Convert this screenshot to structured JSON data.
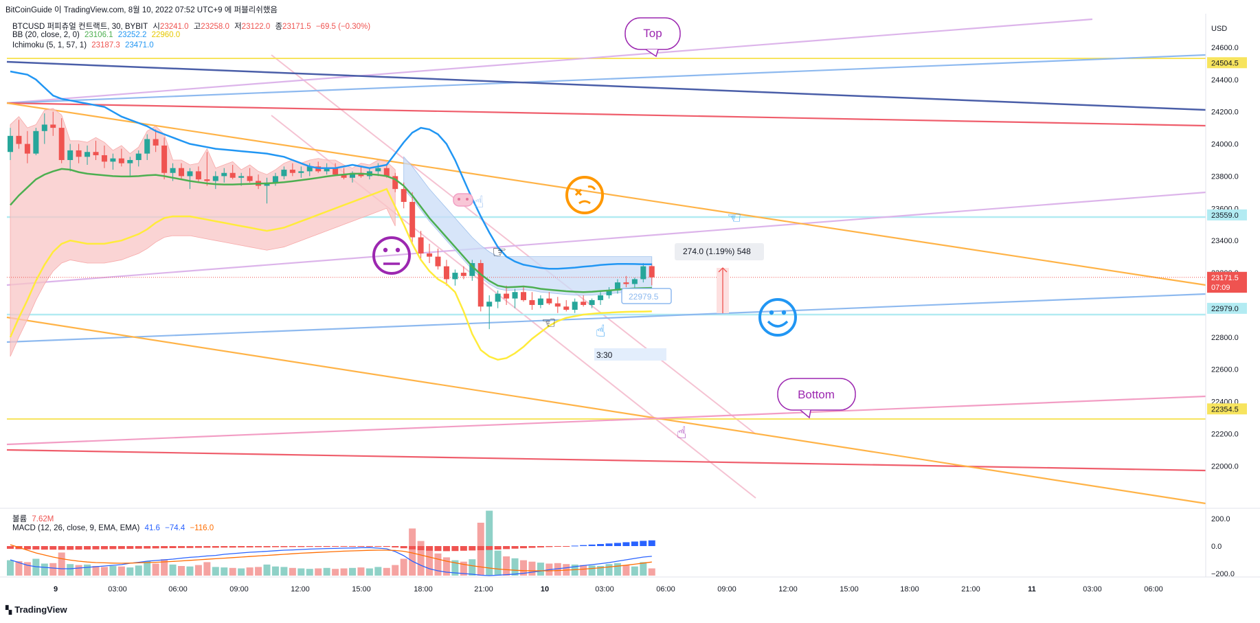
{
  "header": {
    "caption": "BitCoinGuide 이 TradingView.com, 8월 10, 2022 07:52 UTC+9 에 퍼블리쉬했음",
    "symbol_line": {
      "name": "BTCUSD 퍼피츄얼 컨트랙트, 30, BYBIT",
      "open_label": "시",
      "open": "23241.0",
      "high_label": "고",
      "high": "23258.0",
      "low_label": "저",
      "low": "23122.0",
      "close_label": "종",
      "close": "23171.5",
      "change": "−69.5 (−0.30%)"
    },
    "bb_line": {
      "name": "BB (20, close, 2, 0)",
      "basis": "23106.1",
      "upper": "23252.2",
      "lower": "22960.0"
    },
    "ichimoku_line": {
      "name": "Ichimoku (5, 1, 57, 1)",
      "a": "23187.3",
      "b": "23471.0"
    },
    "volume_line": {
      "name": "볼륨",
      "value": "7.62M"
    },
    "macd_line": {
      "name": "MACD (12, 26, close, 9, EMA, EMA)",
      "hist": "41.6",
      "macd": "−74.4",
      "signal": "−116.0"
    }
  },
  "colors": {
    "up": "#26a69a",
    "down": "#ef5350",
    "bb_basis": "#4caf50",
    "bb_upper": "#2196f3",
    "bb_lower": "#ffeb3b",
    "cloud_red": "#f8c6c6",
    "cloud_blue": "#c9dcf7",
    "yellow": "#f7e45e",
    "purple": "#d6a9e6",
    "lightblue": "#8db9ef",
    "navy": "#4a5ea8",
    "red": "#ef5d6b",
    "orange": "#ffb347",
    "pink": "#f29dc4",
    "cyan": "#b2ebf2"
  },
  "chart_data": {
    "type": "candlestick",
    "title": "BTCUSD 퍼피츄얼 컨트랙트, 30, BYBIT",
    "currency_label": "USD",
    "ylim": [
      21750,
      24800
    ],
    "y_ticks": [
      "24600.0",
      "24400.0",
      "24200.0",
      "24000.0",
      "23800.0",
      "23600.0",
      "23400.0",
      "23200.0",
      "22800.0",
      "22600.0",
      "22400.0",
      "22200.0",
      "22000.0"
    ],
    "x_ticks": [
      "9",
      "03:00",
      "06:00",
      "09:00",
      "12:00",
      "15:00",
      "18:00",
      "21:00",
      "10",
      "03:00",
      "06:00",
      "09:00",
      "12:00",
      "15:00",
      "18:00",
      "21:00",
      "11",
      "03:00",
      "06:00"
    ],
    "candles": [
      [
        23950,
        24100,
        23900,
        24050
      ],
      [
        24050,
        24150,
        23970,
        24000
      ],
      [
        24000,
        24080,
        23880,
        23940
      ],
      [
        23940,
        24100,
        23930,
        24080
      ],
      [
        24080,
        24190,
        24000,
        24120
      ],
      [
        24120,
        24200,
        24050,
        24100
      ],
      [
        24100,
        24160,
        23880,
        23900
      ],
      [
        23900,
        24000,
        23830,
        23960
      ],
      [
        23960,
        24000,
        23880,
        23920
      ],
      [
        23920,
        23990,
        23870,
        23950
      ],
      [
        23950,
        24020,
        23900,
        23930
      ],
      [
        23930,
        23990,
        23850,
        23890
      ],
      [
        23890,
        23940,
        23840,
        23910
      ],
      [
        23910,
        23970,
        23860,
        23880
      ],
      [
        23880,
        23920,
        23800,
        23900
      ],
      [
        23900,
        23960,
        23860,
        23940
      ],
      [
        23940,
        24060,
        23900,
        24030
      ],
      [
        24030,
        24090,
        23950,
        23990
      ],
      [
        23990,
        24040,
        23780,
        23820
      ],
      [
        23820,
        23880,
        23770,
        23850
      ],
      [
        23850,
        23880,
        23780,
        23800
      ],
      [
        23800,
        23850,
        23720,
        23830
      ],
      [
        23830,
        23860,
        23760,
        23780
      ],
      [
        23780,
        23950,
        23740,
        23770
      ],
      [
        23770,
        23830,
        23720,
        23800
      ],
      [
        23800,
        23850,
        23760,
        23820
      ],
      [
        23820,
        23870,
        23780,
        23790
      ],
      [
        23790,
        23820,
        23740,
        23800
      ],
      [
        23800,
        23850,
        23760,
        23770
      ],
      [
        23770,
        23810,
        23720,
        23740
      ],
      [
        23740,
        23790,
        23630,
        23760
      ],
      [
        23760,
        23820,
        23740,
        23800
      ],
      [
        23800,
        23860,
        23780,
        23840
      ],
      [
        23840,
        23880,
        23800,
        23820
      ],
      [
        23820,
        23860,
        23790,
        23830
      ],
      [
        23830,
        23880,
        23800,
        23860
      ],
      [
        23860,
        23890,
        23820,
        23830
      ],
      [
        23830,
        23880,
        23810,
        23850
      ],
      [
        23850,
        23880,
        23800,
        23810
      ],
      [
        23810,
        23850,
        23780,
        23790
      ],
      [
        23790,
        23830,
        23760,
        23820
      ],
      [
        23820,
        23860,
        23790,
        23800
      ],
      [
        23800,
        23850,
        23780,
        23830
      ],
      [
        23830,
        23880,
        23800,
        23850
      ],
      [
        23850,
        23870,
        23790,
        23800
      ],
      [
        23800,
        23820,
        23700,
        23720
      ],
      [
        23720,
        23760,
        23600,
        23640
      ],
      [
        23640,
        23700,
        23380,
        23420
      ],
      [
        23420,
        23460,
        23280,
        23320
      ],
      [
        23320,
        23380,
        23260,
        23300
      ],
      [
        23300,
        23350,
        23220,
        23240
      ],
      [
        23240,
        23280,
        23120,
        23160
      ],
      [
        23160,
        23220,
        23120,
        23200
      ],
      [
        23200,
        23240,
        23160,
        23180
      ],
      [
        23180,
        23280,
        23150,
        23260
      ],
      [
        23260,
        23280,
        22960,
        22990
      ],
      [
        22990,
        23060,
        22850,
        23020
      ],
      [
        23020,
        23090,
        22980,
        23070
      ],
      [
        23070,
        23120,
        23000,
        23040
      ],
      [
        23040,
        23100,
        22980,
        23080
      ],
      [
        23080,
        23120,
        23020,
        23030
      ],
      [
        23030,
        23080,
        22970,
        23000
      ],
      [
        23000,
        23060,
        22980,
        23040
      ],
      [
        23040,
        23080,
        23000,
        23010
      ],
      [
        23010,
        23050,
        22950,
        22990
      ],
      [
        22990,
        23030,
        22960,
        22970
      ],
      [
        22970,
        23040,
        22950,
        23020
      ],
      [
        23020,
        23060,
        22990,
        23000
      ],
      [
        23000,
        23040,
        22980,
        23030
      ],
      [
        23030,
        23080,
        23000,
        23060
      ],
      [
        23060,
        23110,
        23040,
        23090
      ],
      [
        23090,
        23160,
        23070,
        23140
      ],
      [
        23140,
        23180,
        23110,
        23130
      ],
      [
        23130,
        23170,
        23100,
        23160
      ],
      [
        23160,
        23260,
        23140,
        23240
      ],
      [
        23241,
        23258,
        23122,
        23171.5
      ]
    ],
    "bb_basis": [
      23620,
      23680,
      23730,
      23780,
      23810,
      23830,
      23845,
      23840,
      23825,
      23815,
      23810,
      23805,
      23800,
      23798,
      23798,
      23800,
      23805,
      23808,
      23800,
      23790,
      23780,
      23770,
      23762,
      23755,
      23750,
      23748,
      23748,
      23750,
      23752,
      23754,
      23755,
      23758,
      23762,
      23768,
      23775,
      23782,
      23790,
      23798,
      23805,
      23810,
      23815,
      23815,
      23812,
      23808,
      23800,
      23780,
      23740,
      23680,
      23610,
      23540,
      23480,
      23420,
      23360,
      23300,
      23240,
      23190,
      23150,
      23120,
      23110,
      23112,
      23115,
      23110,
      23100,
      23095,
      23090,
      23085,
      23082,
      23080,
      23082,
      23086,
      23090,
      23095,
      23100,
      23103,
      23105,
      23106.1
    ],
    "bb_upper": [
      24450,
      24440,
      24430,
      24400,
      24350,
      24300,
      24280,
      24270,
      24260,
      24250,
      24240,
      24230,
      24200,
      24170,
      24150,
      24130,
      24110,
      24080,
      24060,
      24040,
      24020,
      24000,
      23990,
      23980,
      23970,
      23965,
      23960,
      23955,
      23950,
      23945,
      23940,
      23930,
      23920,
      23900,
      23880,
      23860,
      23850,
      23850,
      23850,
      23860,
      23870,
      23860,
      23850,
      23860,
      23870,
      23940,
      24010,
      24070,
      24100,
      24090,
      24060,
      24000,
      23900,
      23780,
      23660,
      23550,
      23450,
      23360,
      23300,
      23270,
      23250,
      23240,
      23230,
      23225,
      23225,
      23228,
      23232,
      23238,
      23242,
      23248,
      23252,
      23255,
      23255,
      23254,
      23253,
      23252.2
    ],
    "bb_lower": [
      22800,
      22920,
      23030,
      23150,
      23250,
      23330,
      23380,
      23400,
      23390,
      23380,
      23380,
      23380,
      23390,
      23400,
      23420,
      23440,
      23470,
      23510,
      23540,
      23550,
      23550,
      23550,
      23540,
      23530,
      23520,
      23510,
      23500,
      23490,
      23480,
      23470,
      23460,
      23470,
      23480,
      23500,
      23520,
      23540,
      23560,
      23580,
      23600,
      23620,
      23640,
      23660,
      23680,
      23700,
      23720,
      23610,
      23500,
      23380,
      23280,
      23210,
      23160,
      23130,
      23080,
      22960,
      22820,
      22720,
      22680,
      22660,
      22670,
      22700,
      22740,
      22790,
      22830,
      22870,
      22900,
      22920,
      22930,
      22940,
      22945,
      22950,
      22952,
      22955,
      22957,
      22958,
      22959,
      22960.0
    ],
    "volume": [
      3.2,
      3.0,
      2.8,
      3.5,
      2.5,
      2.6,
      4.8,
      2.4,
      2.2,
      2.3,
      2.0,
      1.8,
      2.0,
      1.9,
      1.7,
      2.1,
      3.0,
      2.5,
      3.4,
      2.3,
      2.0,
      1.9,
      2.2,
      2.8,
      1.8,
      1.7,
      1.6,
      1.5,
      1.7,
      1.8,
      2.3,
      1.9,
      1.8,
      1.6,
      1.5,
      1.4,
      1.5,
      1.6,
      1.4,
      1.5,
      1.6,
      1.7,
      1.5,
      1.8,
      1.6,
      2.2,
      3.5,
      9.8,
      7.2,
      5.5,
      4.6,
      3.8,
      3.2,
      2.9,
      3.4,
      11.0,
      13.5,
      5.2,
      4.0,
      3.6,
      3.2,
      2.9,
      2.7,
      2.5,
      2.6,
      2.4,
      2.3,
      2.2,
      2.1,
      2.0,
      2.4,
      2.6,
      2.2,
      1.9,
      2.8,
      1.5
    ],
    "macd_hist": [
      -20,
      -22,
      -24,
      -25,
      -26,
      -26,
      -27,
      -27,
      -26,
      -25,
      -24,
      -23,
      -22,
      -21,
      -20,
      -19,
      -18,
      -17,
      -16,
      -15,
      -14,
      -14,
      -13,
      -12,
      -12,
      -11,
      -11,
      -10,
      -10,
      -9,
      -9,
      -8,
      -8,
      -7,
      -7,
      -6,
      -6,
      -6,
      -5,
      -5,
      -5,
      -4,
      -4,
      -5,
      -6,
      -10,
      -16,
      -24,
      -30,
      -34,
      -36,
      -37,
      -36,
      -34,
      -32,
      -30,
      -28,
      -25,
      -22,
      -19,
      -16,
      -13,
      -10,
      -7,
      -4,
      -1,
      3,
      7,
      11,
      15,
      19,
      23,
      28,
      33,
      38,
      41.6
    ],
    "macd": [
      -100,
      -120,
      -140,
      -150,
      -155,
      -160,
      -165,
      -165,
      -160,
      -155,
      -150,
      -145,
      -140,
      -135,
      -125,
      -118,
      -110,
      -105,
      -100,
      -95,
      -88,
      -82,
      -78,
      -72,
      -68,
      -60,
      -55,
      -50,
      -45,
      -42,
      -38,
      -34,
      -30,
      -28,
      -25,
      -22,
      -20,
      -18,
      -17,
      -15,
      -14,
      -12,
      -11,
      -15,
      -20,
      -40,
      -70,
      -110,
      -140,
      -165,
      -180,
      -190,
      -195,
      -200,
      -205,
      -212,
      -215,
      -212,
      -208,
      -204,
      -198,
      -190,
      -182,
      -172,
      -165,
      -158,
      -150,
      -142,
      -135,
      -128,
      -120,
      -110,
      -100,
      -90,
      -80,
      -74.4
    ],
    "macd_signal": [
      10,
      -10,
      -30,
      -50,
      -65,
      -80,
      -92,
      -102,
      -110,
      -116,
      -120,
      -122,
      -124,
      -125,
      -124,
      -122,
      -120,
      -118,
      -115,
      -112,
      -108,
      -104,
      -100,
      -96,
      -92,
      -88,
      -84,
      -80,
      -76,
      -72,
      -68,
      -64,
      -60,
      -56,
      -52,
      -49,
      -46,
      -43,
      -40,
      -37,
      -35,
      -33,
      -31,
      -30,
      -30,
      -32,
      -38,
      -50,
      -65,
      -80,
      -95,
      -110,
      -122,
      -133,
      -143,
      -152,
      -160,
      -167,
      -172,
      -176,
      -179,
      -180,
      -180,
      -180,
      -178,
      -175,
      -172,
      -168,
      -163,
      -158,
      -152,
      -146,
      -139,
      -132,
      -124,
      -116.0
    ],
    "macd_ticks": [
      "200.0",
      "0.0",
      "−200.0"
    ],
    "price_labels": [
      {
        "text": "24504.5",
        "value": 24504.5,
        "color": "#f7e45e",
        "text_color": "#131722"
      },
      {
        "text": "23559.0",
        "value": 23559.0,
        "color": "#b2ebf2",
        "text_color": "#131722"
      },
      {
        "text": "23171.5",
        "value": 23171.5,
        "color": "#ef5350",
        "text_color": "#ffffff"
      },
      {
        "text": "07:09",
        "value": 23110,
        "color": "#ef5350",
        "text_color": "#ffffff"
      },
      {
        "text": "22979.0",
        "value": 22979.0,
        "color": "#b2ebf2",
        "text_color": "#131722"
      },
      {
        "text": "22354.5",
        "value": 22354.5,
        "color": "#f7e45e",
        "text_color": "#131722"
      }
    ],
    "annotations": {
      "top_bubble": "Top",
      "bottom_bubble": "Bottom",
      "measure_label": "274.0 (1.19%) 548",
      "date_range_label": "3:30",
      "price_box_label": "22979.5"
    }
  }
}
